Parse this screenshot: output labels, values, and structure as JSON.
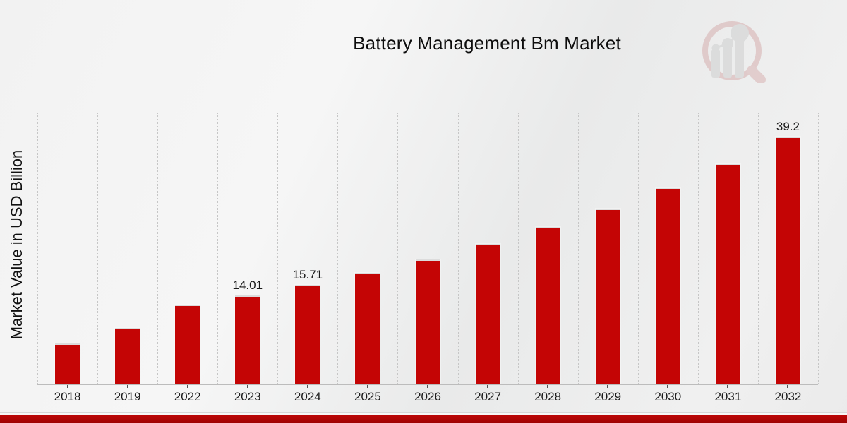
{
  "title": "Battery Management Bm Market",
  "ylabel": "Market Value in USD Billion",
  "colors": {
    "bar": "#c40505",
    "grid": "#c6c6c6",
    "axis": "#bcbcbc",
    "footer_red": "#b00505",
    "logo_pink": "#d2a2a2",
    "logo_gray": "#c6c6c6",
    "text": "#1a1a1a"
  },
  "logo_icon": "magnifier-bar-chart-logo",
  "chart_data": {
    "type": "bar",
    "title": "Battery Management Bm Market",
    "xlabel": "",
    "ylabel": "Market Value in USD Billion",
    "categories": [
      "2018",
      "2019",
      "2022",
      "2023",
      "2024",
      "2025",
      "2026",
      "2027",
      "2028",
      "2029",
      "2030",
      "2031",
      "2032"
    ],
    "values": [
      6.4,
      8.8,
      12.5,
      14.01,
      15.71,
      17.61,
      19.74,
      22.13,
      24.81,
      27.81,
      31.18,
      34.95,
      39.2
    ],
    "bar_labels": [
      "",
      "",
      "",
      "14.01",
      "15.71",
      "",
      "",
      "",
      "",
      "",
      "",
      "",
      "39.2"
    ],
    "ylim": [
      0,
      43
    ],
    "grid": "vertical-dotted",
    "legend": "none",
    "bar_color": "#c40505"
  }
}
